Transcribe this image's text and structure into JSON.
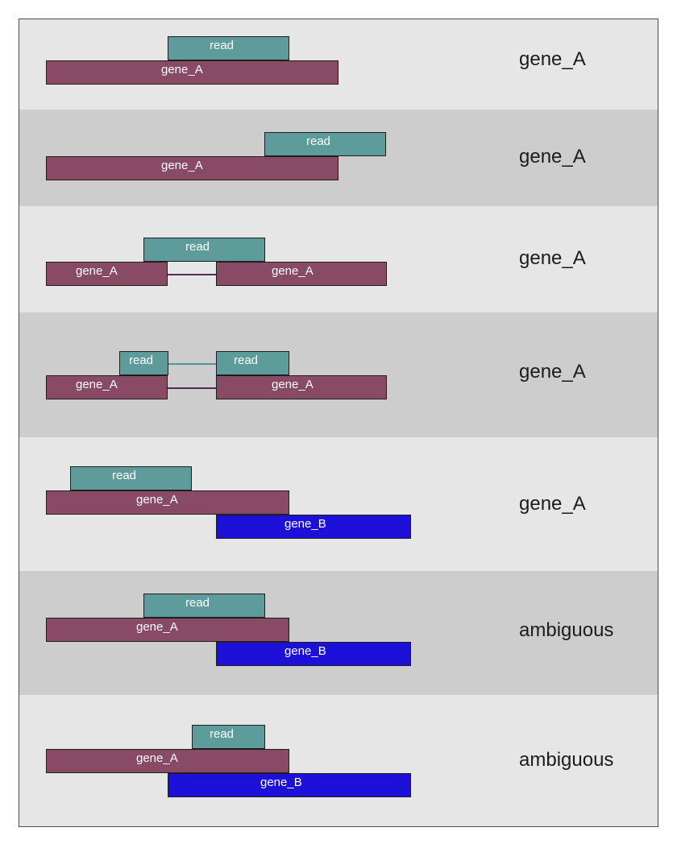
{
  "scenarios": [
    {
      "label_read": "read",
      "label_gene_a": "gene_A",
      "result": "gene_A"
    },
    {
      "label_read": "read",
      "label_gene_a": "gene_A",
      "result": "gene_A"
    },
    {
      "label_read": "read",
      "label_gene_a_left": "gene_A",
      "label_gene_a_right": "gene_A",
      "result": "gene_A"
    },
    {
      "label_read_left": "read",
      "label_read_right": "read",
      "label_gene_a_left": "gene_A",
      "label_gene_a_right": "gene_A",
      "result": "gene_A"
    },
    {
      "label_read": "read",
      "label_gene_a": "gene_A",
      "label_gene_b": "gene_B",
      "result": "gene_A"
    },
    {
      "label_read": "read",
      "label_gene_a": "gene_A",
      "label_gene_b": "gene_B",
      "result": "ambiguous"
    },
    {
      "label_read": "read",
      "label_gene_a": "gene_A",
      "label_gene_b": "gene_B",
      "result": "ambiguous"
    }
  ],
  "colors": {
    "gene_a": "#884a64",
    "gene_b": "#1d10d9",
    "read": "#5e9b9b",
    "row_light": "#e6e6e6",
    "row_dark": "#cdcdcd"
  }
}
